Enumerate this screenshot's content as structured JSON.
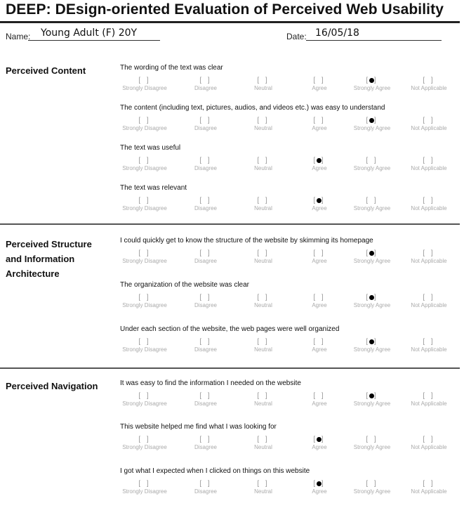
{
  "form": {
    "title": "DEEP:  DEsign-oriented Evaluation of Perceived Web Usability",
    "name_label": "Name:",
    "name_value": "Young Adult (F) 20Y",
    "date_label": "Date:",
    "date_value": "16/05/18"
  },
  "scale": {
    "box": "[ ]",
    "options": [
      "Strongly Disagree",
      "Disagree",
      "Neutral",
      "Agree",
      "Strongly Agree",
      "Not Applicable"
    ]
  },
  "sections": [
    {
      "title": "Perceived Content",
      "questions": [
        {
          "text": "The wording of the text was clear",
          "selected": "Strongly Agree"
        },
        {
          "text": "The content (including text, pictures, audios, and videos etc.) was easy to understand",
          "selected": "Strongly Agree"
        },
        {
          "text": "The text was useful",
          "selected": "Agree"
        },
        {
          "text": "The text was relevant",
          "selected": "Agree"
        }
      ]
    },
    {
      "title": "Perceived Structure and Information Architecture",
      "title_lines": [
        "Perceived Structure",
        "and Information",
        "Architecture"
      ],
      "questions": [
        {
          "text": "I could quickly get to know the structure of the website by skimming its homepage",
          "selected": "Strongly Agree"
        },
        {
          "text": "The organization of the website was clear",
          "selected": "Strongly Agree"
        },
        {
          "text": "Under each section of the website, the web pages were well organized",
          "selected": "Strongly Agree"
        }
      ]
    },
    {
      "title": "Perceived Navigation",
      "questions": [
        {
          "text": "It was easy to find the information I needed on the website",
          "selected": "Strongly Agree"
        },
        {
          "text": "This website helped me find what I was looking for",
          "selected": "Agree"
        },
        {
          "text": "I got what I expected when I clicked on things on this website",
          "selected": "Agree"
        }
      ]
    }
  ]
}
